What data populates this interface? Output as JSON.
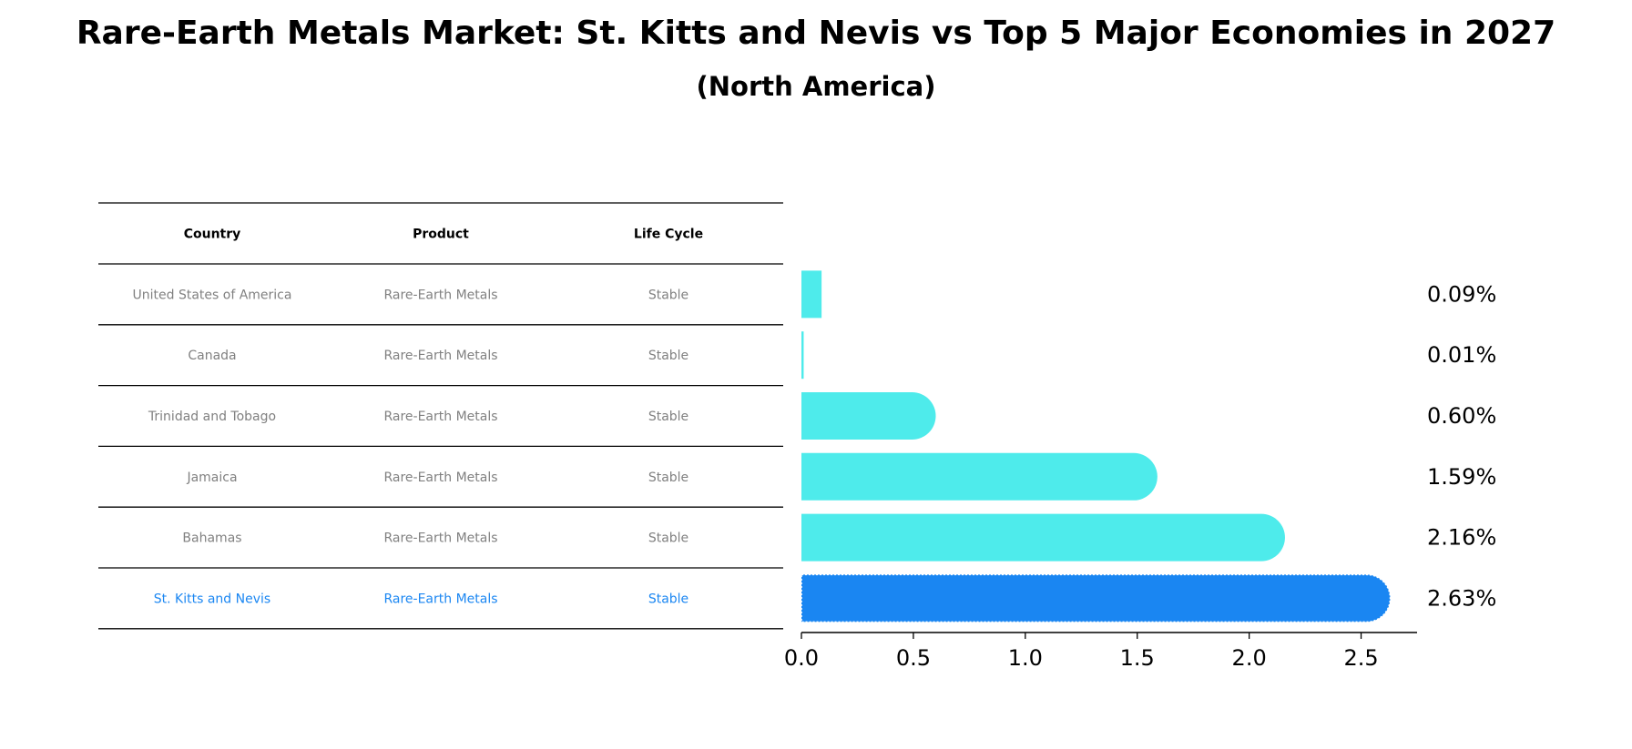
{
  "title": "Rare-Earth Metals Market: St. Kitts and Nevis vs Top 5 Major Economies in 2027",
  "subtitle": "(North America)",
  "table": {
    "headers": [
      "Country",
      "Product",
      "Life Cycle"
    ],
    "rows": [
      [
        "United States of America",
        "Rare-Earth Metals",
        "Stable"
      ],
      [
        "Canada",
        "Rare-Earth Metals",
        "Stable"
      ],
      [
        "Trinidad and Tobago",
        "Rare-Earth Metals",
        "Stable"
      ],
      [
        "Jamaica",
        "Rare-Earth Metals",
        "Stable"
      ],
      [
        "Bahamas",
        "Rare-Earth Metals",
        "Stable"
      ],
      [
        "St. Kitts and Nevis",
        "Rare-Earth Metals",
        "Stable"
      ]
    ],
    "highlight_row": 5
  },
  "colors": {
    "bar": "#4EEBEB",
    "highlight": "#1A86F2",
    "muted_text": "#808080",
    "header_text": "#000000",
    "rule": "#000000"
  },
  "chart_data": {
    "type": "bar",
    "orientation": "horizontal",
    "categories": [
      "United States of America",
      "Canada",
      "Trinidad and Tobago",
      "Jamaica",
      "Bahamas",
      "St. Kitts and Nevis"
    ],
    "values": [
      0.09,
      0.01,
      0.6,
      1.59,
      2.16,
      2.63
    ],
    "value_labels": [
      "0.09%",
      "0.01%",
      "0.60%",
      "1.59%",
      "2.16%",
      "2.63%"
    ],
    "xlim": [
      0,
      2.75
    ],
    "xticks": [
      "0.0",
      "0.5",
      "1.0",
      "1.5",
      "2.0",
      "2.5"
    ],
    "highlight_index": 5,
    "grid": false,
    "legend": "none"
  }
}
